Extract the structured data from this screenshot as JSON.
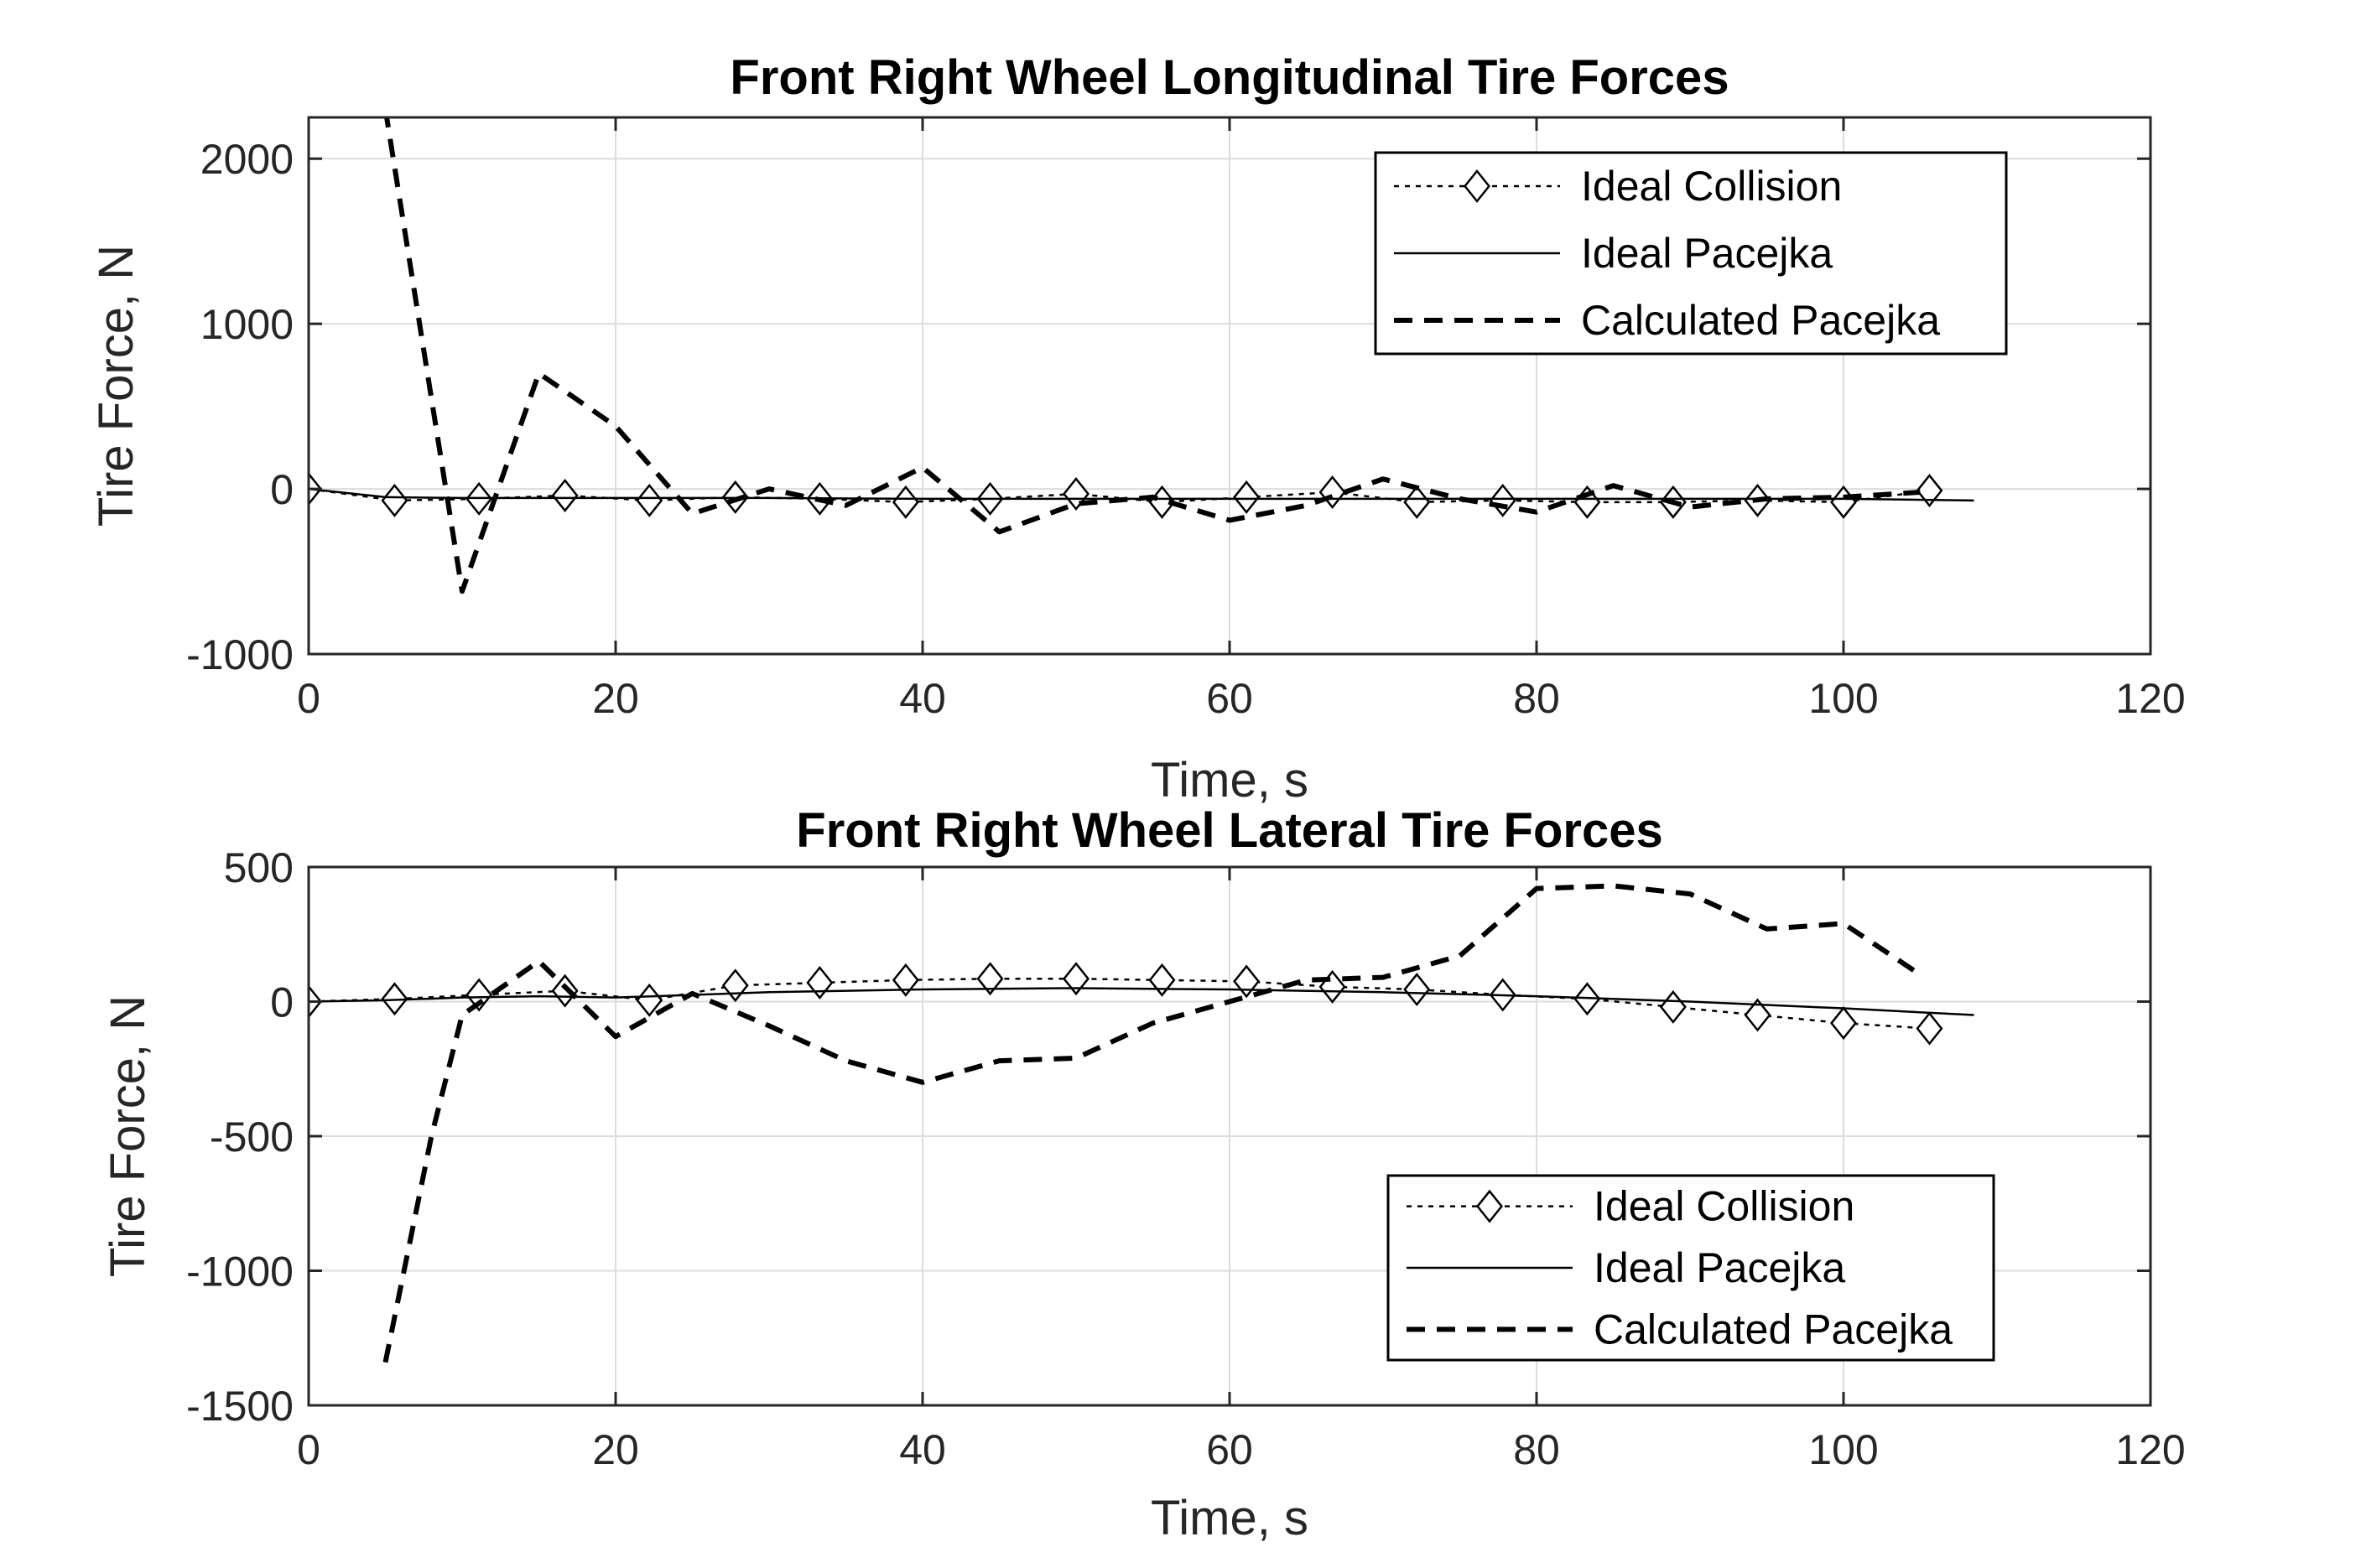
{
  "chart_data": [
    {
      "type": "line",
      "title": "Front Right Wheel Longitudinal Tire Forces",
      "xlabel": "Time, s",
      "ylabel": "Tire Force, N",
      "xlim": [
        0,
        120
      ],
      "ylim": [
        -1000,
        2250
      ],
      "xticks": [
        0,
        20,
        40,
        60,
        80,
        100,
        120
      ],
      "yticks": [
        -1000,
        0,
        1000,
        2000
      ],
      "xtick_labels": [
        "0",
        "20",
        "40",
        "60",
        "80",
        "100",
        "120"
      ],
      "ytick_labels": [
        "-1000",
        "0",
        "1000",
        "2000"
      ],
      "grid": true,
      "legend_position": "top-right",
      "series": [
        {
          "name": "Ideal Collision",
          "style": "dotted-diamond",
          "x": [
            0,
            5.6,
            11.1,
            16.7,
            22.2,
            27.8,
            33.3,
            38.9,
            44.4,
            50,
            55.6,
            61.1,
            66.7,
            72.2,
            77.8,
            83.3,
            88.9,
            94.4,
            100,
            105.6
          ],
          "y": [
            0,
            -70,
            -60,
            -40,
            -70,
            -50,
            -60,
            -80,
            -60,
            -30,
            -80,
            -50,
            -20,
            -80,
            -70,
            -80,
            -80,
            -70,
            -80,
            -10
          ]
        },
        {
          "name": "Ideal Pacejka",
          "style": "solid",
          "x": [
            0,
            5,
            10,
            20,
            30,
            40,
            50,
            60,
            70,
            80,
            90,
            100,
            108.5
          ],
          "y": [
            0,
            -50,
            -55,
            -55,
            -55,
            -60,
            -60,
            -60,
            -60,
            -60,
            -60,
            -60,
            -70
          ]
        },
        {
          "name": "Calculated Pacejka",
          "style": "dashed",
          "x": [
            5,
            10,
            15,
            20,
            25,
            30,
            35,
            40,
            45,
            50,
            55,
            60,
            65,
            70,
            75,
            80,
            85,
            90,
            95,
            100,
            105
          ],
          "y": [
            2300,
            -620,
            700,
            380,
            -150,
            0,
            -100,
            130,
            -260,
            -90,
            -50,
            -190,
            -100,
            60,
            -60,
            -140,
            20,
            -110,
            -60,
            -50,
            -20
          ]
        }
      ]
    },
    {
      "type": "line",
      "title": "Front Right Wheel Lateral Tire Forces",
      "xlabel": "Time, s",
      "ylabel": "Tire Force, N",
      "xlim": [
        0,
        120
      ],
      "ylim": [
        -1500,
        500
      ],
      "xticks": [
        0,
        20,
        40,
        60,
        80,
        100,
        120
      ],
      "yticks": [
        -1500,
        -1000,
        -500,
        0,
        500
      ],
      "xtick_labels": [
        "0",
        "20",
        "40",
        "60",
        "80",
        "100",
        "120"
      ],
      "ytick_labels": [
        "-1500",
        "-1000",
        "-500",
        "0",
        "500"
      ],
      "grid": true,
      "legend_position": "bottom-right",
      "series": [
        {
          "name": "Ideal Collision",
          "style": "dotted-diamond",
          "x": [
            0,
            5.6,
            11.1,
            16.7,
            22.2,
            27.8,
            33.3,
            38.9,
            44.4,
            50,
            55.6,
            61.1,
            66.7,
            72.2,
            77.8,
            83.3,
            88.9,
            94.4,
            100,
            105.6
          ],
          "y": [
            0,
            10,
            25,
            40,
            5,
            60,
            70,
            80,
            85,
            85,
            80,
            75,
            55,
            45,
            25,
            10,
            -20,
            -50,
            -80,
            -100
          ]
        },
        {
          "name": "Ideal Pacejka",
          "style": "solid",
          "x": [
            0,
            5,
            10,
            15,
            20,
            30,
            40,
            50,
            60,
            70,
            80,
            90,
            100,
            108.5
          ],
          "y": [
            0,
            5,
            15,
            20,
            15,
            35,
            45,
            50,
            45,
            35,
            20,
            0,
            -25,
            -50
          ]
        },
        {
          "name": "Calculated Pacejka",
          "style": "dashed",
          "x": [
            5,
            8,
            10,
            15,
            20,
            25,
            30,
            35,
            40,
            45,
            50,
            55,
            60,
            65,
            70,
            75,
            80,
            85,
            90,
            95,
            100,
            105
          ],
          "y": [
            -1340,
            -500,
            -50,
            150,
            -130,
            30,
            -90,
            -220,
            -300,
            -220,
            -210,
            -80,
            0,
            80,
            90,
            170,
            420,
            430,
            400,
            270,
            290,
            100
          ]
        }
      ]
    }
  ]
}
